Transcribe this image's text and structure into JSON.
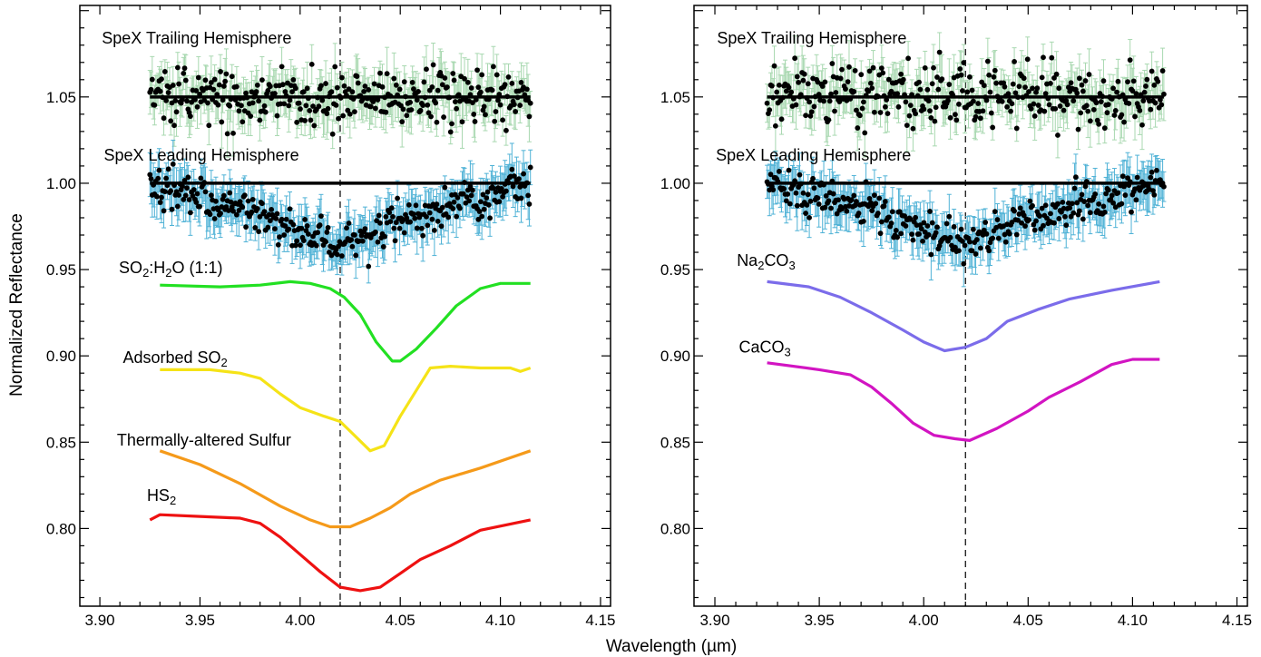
{
  "figure": {
    "xlabel": "Wavelength (µm)",
    "ylabel": "Normalized Reflectance"
  },
  "colors": {
    "spex_trailing_errorbar": "#a8d8b0",
    "spex_leading_errorbar": "#4fb2d6",
    "spex_points": "#000000",
    "so2_h2o": "#22e022",
    "adsorbed_so2": "#f5e317",
    "thermally_altered_sulfur": "#f59a1a",
    "hs2": "#ee1111",
    "na2co3": "#7b6cea",
    "caco3": "#d214c2"
  },
  "chart_data": [
    {
      "type": "scatter",
      "panel": "left",
      "xlabel": "Wavelength (µm)",
      "ylabel": "Normalized Reflectance",
      "xlim": [
        3.89,
        4.155
      ],
      "ylim": [
        0.755,
        1.103
      ],
      "xticks": [
        "3.90",
        "3.95",
        "4.00",
        "4.05",
        "4.10",
        "4.15"
      ],
      "yticks": [
        "0.80",
        "0.85",
        "0.90",
        "0.95",
        "1.00",
        "1.05"
      ],
      "vline_x": 4.02,
      "series": [
        {
          "name": "SpeX Trailing Hemisphere",
          "label_parts": [
            {
              "t": "SpeX Trailing Hemisphere"
            }
          ],
          "label_pos": [
            3.901,
            1.081
          ],
          "style": "points",
          "color_key": "spex_trailing_errorbar",
          "x_range": [
            3.925,
            4.115
          ],
          "baseline": 1.05,
          "scatter_sd": 0.0085,
          "error": 0.011,
          "continuum": [
            [
              3.925,
              1.05
            ],
            [
              4.115,
              1.05
            ]
          ],
          "continuum_color": "#000000"
        },
        {
          "name": "SpeX Leading Hemisphere",
          "label_parts": [
            {
              "t": "SpeX Leading Hemisphere"
            }
          ],
          "label_pos": [
            3.902,
            1.013
          ],
          "style": "points",
          "color_key": "spex_leading_errorbar",
          "x_range": [
            3.925,
            4.115
          ],
          "profile": [
            [
              3.925,
              1.0
            ],
            [
              3.95,
              0.992
            ],
            [
              3.975,
              0.984
            ],
            [
              4.0,
              0.973
            ],
            [
              4.015,
              0.966
            ],
            [
              4.025,
              0.966
            ],
            [
              4.05,
              0.979
            ],
            [
              4.075,
              0.986
            ],
            [
              4.1,
              0.995
            ],
            [
              4.115,
              1.001
            ]
          ],
          "scatter_sd": 0.0055,
          "error": 0.011,
          "continuum": [
            [
              3.925,
              1.0
            ],
            [
              4.115,
              1.0
            ]
          ],
          "continuum_color": "#000000"
        },
        {
          "name": "SO2:H2O (1:1)",
          "label_parts": [
            {
              "t": "SO"
            },
            {
              "t": "2",
              "sub": true
            },
            {
              "t": ":H"
            },
            {
              "t": "2",
              "sub": true
            },
            {
              "t": "O (1:1)"
            }
          ],
          "label_pos": [
            3.9095,
            0.948
          ],
          "style": "line",
          "color_key": "so2_h2o",
          "points": [
            [
              3.93,
              0.941
            ],
            [
              3.96,
              0.94
            ],
            [
              3.98,
              0.941
            ],
            [
              3.995,
              0.943
            ],
            [
              4.005,
              0.942
            ],
            [
              4.015,
              0.939
            ],
            [
              4.022,
              0.934
            ],
            [
              4.03,
              0.924
            ],
            [
              4.038,
              0.908
            ],
            [
              4.046,
              0.897
            ],
            [
              4.05,
              0.897
            ],
            [
              4.058,
              0.904
            ],
            [
              4.068,
              0.916
            ],
            [
              4.078,
              0.929
            ],
            [
              4.09,
              0.939
            ],
            [
              4.1,
              0.942
            ],
            [
              4.115,
              0.942
            ]
          ]
        },
        {
          "name": "Adsorbed SO2",
          "label_parts": [
            {
              "t": "Adsorbed SO"
            },
            {
              "t": "2",
              "sub": true
            }
          ],
          "label_pos": [
            3.9115,
            0.896
          ],
          "style": "line",
          "color_key": "adsorbed_so2",
          "points": [
            [
              3.93,
              0.892
            ],
            [
              3.955,
              0.892
            ],
            [
              3.97,
              0.89
            ],
            [
              3.98,
              0.887
            ],
            [
              3.99,
              0.878
            ],
            [
              4.0,
              0.87
            ],
            [
              4.012,
              0.865
            ],
            [
              4.02,
              0.862
            ],
            [
              4.028,
              0.853
            ],
            [
              4.035,
              0.845
            ],
            [
              4.042,
              0.848
            ],
            [
              4.05,
              0.865
            ],
            [
              4.058,
              0.88
            ],
            [
              4.065,
              0.893
            ],
            [
              4.075,
              0.894
            ],
            [
              4.09,
              0.893
            ],
            [
              4.105,
              0.893
            ],
            [
              4.11,
              0.891
            ],
            [
              4.115,
              0.893
            ]
          ]
        },
        {
          "name": "Thermally-altered Sulfur",
          "label_parts": [
            {
              "t": "Thermally-altered Sulfur"
            }
          ],
          "label_pos": [
            3.9085,
            0.848
          ],
          "style": "line",
          "color_key": "thermally_altered_sulfur",
          "points": [
            [
              3.93,
              0.845
            ],
            [
              3.95,
              0.837
            ],
            [
              3.97,
              0.826
            ],
            [
              3.99,
              0.813
            ],
            [
              4.005,
              0.805
            ],
            [
              4.015,
              0.801
            ],
            [
              4.025,
              0.801
            ],
            [
              4.035,
              0.806
            ],
            [
              4.045,
              0.812
            ],
            [
              4.055,
              0.82
            ],
            [
              4.07,
              0.828
            ],
            [
              4.09,
              0.835
            ],
            [
              4.115,
              0.845
            ]
          ]
        },
        {
          "name": "HS2",
          "label_parts": [
            {
              "t": "HS"
            },
            {
              "t": "2",
              "sub": true
            }
          ],
          "label_pos": [
            3.9235,
            0.816
          ],
          "style": "line",
          "color_key": "hs2",
          "points": [
            [
              3.925,
              0.805
            ],
            [
              3.93,
              0.808
            ],
            [
              3.95,
              0.807
            ],
            [
              3.97,
              0.806
            ],
            [
              3.98,
              0.803
            ],
            [
              3.99,
              0.795
            ],
            [
              4.0,
              0.785
            ],
            [
              4.01,
              0.775
            ],
            [
              4.02,
              0.766
            ],
            [
              4.03,
              0.764
            ],
            [
              4.04,
              0.766
            ],
            [
              4.05,
              0.774
            ],
            [
              4.06,
              0.782
            ],
            [
              4.075,
              0.79
            ],
            [
              4.09,
              0.799
            ],
            [
              4.115,
              0.805
            ]
          ]
        }
      ]
    },
    {
      "type": "scatter",
      "panel": "right",
      "xlabel": "Wavelength (µm)",
      "ylabel": "",
      "xlim": [
        3.89,
        4.155
      ],
      "ylim": [
        0.755,
        1.103
      ],
      "xticks": [
        "3.90",
        "3.95",
        "4.00",
        "4.05",
        "4.10",
        "4.15"
      ],
      "yticks": [
        "0.80",
        "0.85",
        "0.90",
        "0.95",
        "1.00",
        "1.05"
      ],
      "vline_x": 4.02,
      "series": [
        {
          "name": "SpeX Trailing Hemisphere",
          "label_parts": [
            {
              "t": "SpeX Trailing Hemisphere"
            }
          ],
          "label_pos": [
            3.901,
            1.081
          ],
          "style": "points",
          "color_key": "spex_trailing_errorbar",
          "x_range": [
            3.925,
            4.115
          ],
          "baseline": 1.05,
          "scatter_sd": 0.0085,
          "error": 0.011,
          "continuum": [
            [
              3.925,
              1.05
            ],
            [
              4.115,
              1.05
            ]
          ],
          "continuum_color": "#000000"
        },
        {
          "name": "SpeX Leading Hemisphere",
          "label_parts": [
            {
              "t": "SpeX Leading Hemisphere"
            }
          ],
          "label_pos": [
            3.9005,
            1.013
          ],
          "style": "points",
          "color_key": "spex_leading_errorbar",
          "x_range": [
            3.925,
            4.115
          ],
          "profile": [
            [
              3.925,
              1.0
            ],
            [
              3.95,
              0.992
            ],
            [
              3.975,
              0.984
            ],
            [
              4.0,
              0.973
            ],
            [
              4.015,
              0.966
            ],
            [
              4.025,
              0.966
            ],
            [
              4.05,
              0.979
            ],
            [
              4.075,
              0.986
            ],
            [
              4.1,
              0.995
            ],
            [
              4.115,
              1.001
            ]
          ],
          "scatter_sd": 0.0055,
          "error": 0.011,
          "continuum": [
            [
              3.925,
              1.0
            ],
            [
              4.115,
              1.0
            ]
          ],
          "continuum_color": "#000000"
        },
        {
          "name": "Na2CO3",
          "label_parts": [
            {
              "t": "Na"
            },
            {
              "t": "2",
              "sub": true
            },
            {
              "t": "CO"
            },
            {
              "t": "3",
              "sub": true
            }
          ],
          "label_pos": [
            3.9105,
            0.952
          ],
          "style": "line",
          "color_key": "na2co3",
          "points": [
            [
              3.925,
              0.943
            ],
            [
              3.945,
              0.94
            ],
            [
              3.96,
              0.934
            ],
            [
              3.975,
              0.925
            ],
            [
              3.99,
              0.915
            ],
            [
              4.0,
              0.908
            ],
            [
              4.01,
              0.903
            ],
            [
              4.02,
              0.905
            ],
            [
              4.03,
              0.91
            ],
            [
              4.04,
              0.92
            ],
            [
              4.055,
              0.927
            ],
            [
              4.07,
              0.933
            ],
            [
              4.09,
              0.938
            ],
            [
              4.113,
              0.943
            ]
          ]
        },
        {
          "name": "CaCO3",
          "label_parts": [
            {
              "t": "CaCO"
            },
            {
              "t": "3",
              "sub": true
            }
          ],
          "label_pos": [
            3.9115,
            0.902
          ],
          "style": "line",
          "color_key": "caco3",
          "points": [
            [
              3.925,
              0.896
            ],
            [
              3.95,
              0.892
            ],
            [
              3.965,
              0.889
            ],
            [
              3.975,
              0.882
            ],
            [
              3.985,
              0.872
            ],
            [
              3.995,
              0.861
            ],
            [
              4.005,
              0.854
            ],
            [
              4.015,
              0.852
            ],
            [
              4.022,
              0.851
            ],
            [
              4.035,
              0.858
            ],
            [
              4.05,
              0.868
            ],
            [
              4.06,
              0.876
            ],
            [
              4.075,
              0.885
            ],
            [
              4.09,
              0.895
            ],
            [
              4.1,
              0.898
            ],
            [
              4.113,
              0.898
            ]
          ]
        }
      ]
    }
  ]
}
